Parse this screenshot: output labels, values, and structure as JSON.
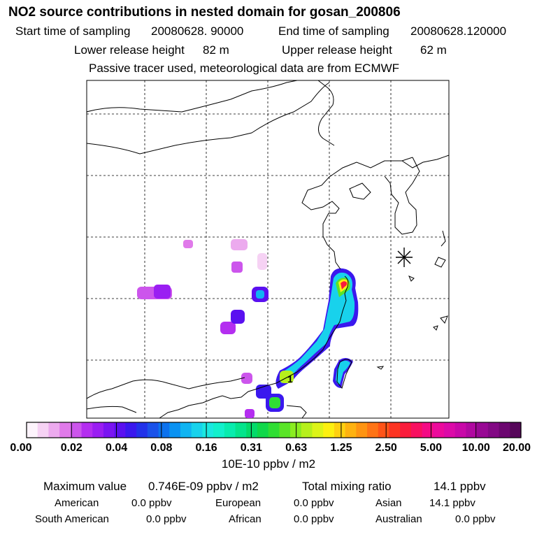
{
  "header": {
    "title": "NO2 source contributions in nested domain for gosan_200806",
    "start_label": "Start time of sampling",
    "start_value": "20080628. 90000",
    "end_label": "End time of sampling",
    "end_value": "20080628.120000",
    "lower_label": "Lower release height",
    "lower_value": "82 m",
    "upper_label": "Upper release height",
    "upper_value": "62 m",
    "note": "Passive tracer used, meteorological data are from ECMWF"
  },
  "map": {
    "receptor_marker": "1",
    "site_marker_icon": "asterisk-star-icon"
  },
  "chart_data": {
    "type": "heatmap",
    "title": "NO2 source contributions in nested domain for gosan_200806",
    "colorbar": {
      "unit": "10E-10 ppbv / m2",
      "ticks": [
        "0.00",
        "0.02",
        "0.04",
        "0.08",
        "0.16",
        "0.31",
        "0.63",
        "1.25",
        "2.50",
        "5.00",
        "10.00",
        "20.00"
      ],
      "colors": [
        "#fdf4fc",
        "#f6d2f4",
        "#ecaaee",
        "#e07aea",
        "#cc55ec",
        "#b42ef0",
        "#9a1ef2",
        "#7a14f2",
        "#5a10f0",
        "#3a18ee",
        "#2232ea",
        "#1a52ea",
        "#0c72ee",
        "#0a92f2",
        "#10b4f2",
        "#18d2ec",
        "#1ae8e0",
        "#12f0cc",
        "#08ecae",
        "#04e48c",
        "#04da6a",
        "#10d84a",
        "#30de34",
        "#5ae428",
        "#8aec20",
        "#b6f01c",
        "#dcf418",
        "#fcf010",
        "#fed010",
        "#feb210",
        "#fe9412",
        "#fe7416",
        "#fe5418",
        "#fc3422",
        "#fa1c3c",
        "#f81060",
        "#f40a84",
        "#ec0a9c",
        "#dc0aa8",
        "#c808a8",
        "#b008a0",
        "#980894",
        "#820884",
        "#6c0670",
        "#56065a"
      ]
    },
    "stats": {
      "max_label": "Maximum value",
      "max_value": "0.746E-09 ppbv / m2",
      "total_label": "Total mixing ratio",
      "total_value": "14.1 ppbv"
    },
    "regions": [
      {
        "name": "American",
        "value": "0.0 ppbv"
      },
      {
        "name": "European",
        "value": "0.0 ppbv"
      },
      {
        "name": "Asian",
        "value": "14.1 ppbv"
      },
      {
        "name": "South American",
        "value": "0.0 ppbv"
      },
      {
        "name": "African",
        "value": "0.0 ppbv"
      },
      {
        "name": "Australian",
        "value": "0.0 ppbv"
      }
    ]
  }
}
